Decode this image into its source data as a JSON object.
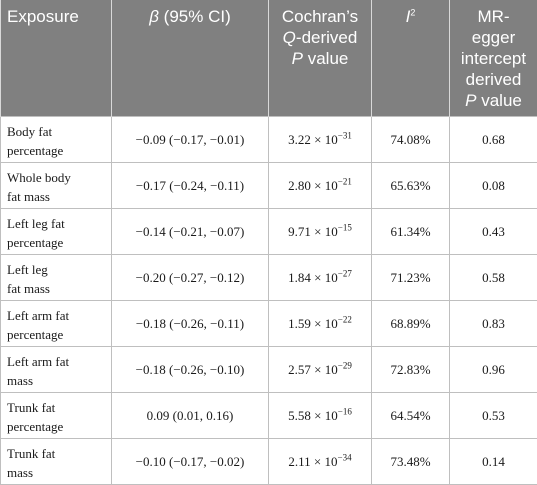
{
  "table": {
    "headers": {
      "exposure": "Exposure",
      "beta_symbol": "β",
      "beta_rest": " (95% CI)",
      "cochran_line1": "Cochran’s",
      "cochran_q": "Q",
      "cochran_line2_rest": "-derived",
      "cochran_p": "P",
      "cochran_line3_rest": " value",
      "i2_base": "I",
      "i2_sup": "2",
      "egger_line1": "MR-egger",
      "egger_line2": "intercept",
      "egger_line3": "derived",
      "egger_p": "P",
      "egger_line4_rest": " value"
    },
    "rows": [
      {
        "exposure_l1": "Body fat",
        "exposure_l2": "percentage",
        "beta": "−0.09 (−0.17, −0.01)",
        "cq_mant": "3.22 × 10",
        "cq_exp": "−31",
        "i2": "74.08%",
        "egger": "0.68"
      },
      {
        "exposure_l1": "Whole body",
        "exposure_l2": "fat mass",
        "beta": "−0.17 (−0.24, −0.11)",
        "cq_mant": "2.80 × 10",
        "cq_exp": "−21",
        "i2": "65.63%",
        "egger": "0.08"
      },
      {
        "exposure_l1": "Left leg fat",
        "exposure_l2": "percentage",
        "beta": "−0.14 (−0.21, −0.07)",
        "cq_mant": "9.71 × 10",
        "cq_exp": "−15",
        "i2": "61.34%",
        "egger": "0.43"
      },
      {
        "exposure_l1": "Left leg",
        "exposure_l2": "fat mass",
        "beta": "−0.20 (−0.27, −0.12)",
        "cq_mant": "1.84 × 10",
        "cq_exp": "−27",
        "i2": "71.23%",
        "egger": "0.58"
      },
      {
        "exposure_l1": "Left arm fat",
        "exposure_l2": "percentage",
        "beta": "−0.18 (−0.26, −0.11)",
        "cq_mant": "1.59 × 10",
        "cq_exp": "−22",
        "i2": "68.89%",
        "egger": "0.83"
      },
      {
        "exposure_l1": "Left arm fat",
        "exposure_l2": "mass",
        "beta": "−0.18 (−0.26, −0.10)",
        "cq_mant": "2.57 × 10",
        "cq_exp": "−29",
        "i2": "72.83%",
        "egger": "0.96"
      },
      {
        "exposure_l1": "Trunk fat",
        "exposure_l2": "percentage",
        "beta": "0.09 (0.01, 0.16)",
        "cq_mant": "5.58 × 10",
        "cq_exp": "−16",
        "i2": "64.54%",
        "egger": "0.53"
      },
      {
        "exposure_l1": "Trunk fat",
        "exposure_l2": "mass",
        "beta": "−0.10 (−0.17, −0.02)",
        "cq_mant": "2.11 × 10",
        "cq_exp": "−34",
        "i2": "73.48%",
        "egger": "0.14"
      }
    ]
  }
}
